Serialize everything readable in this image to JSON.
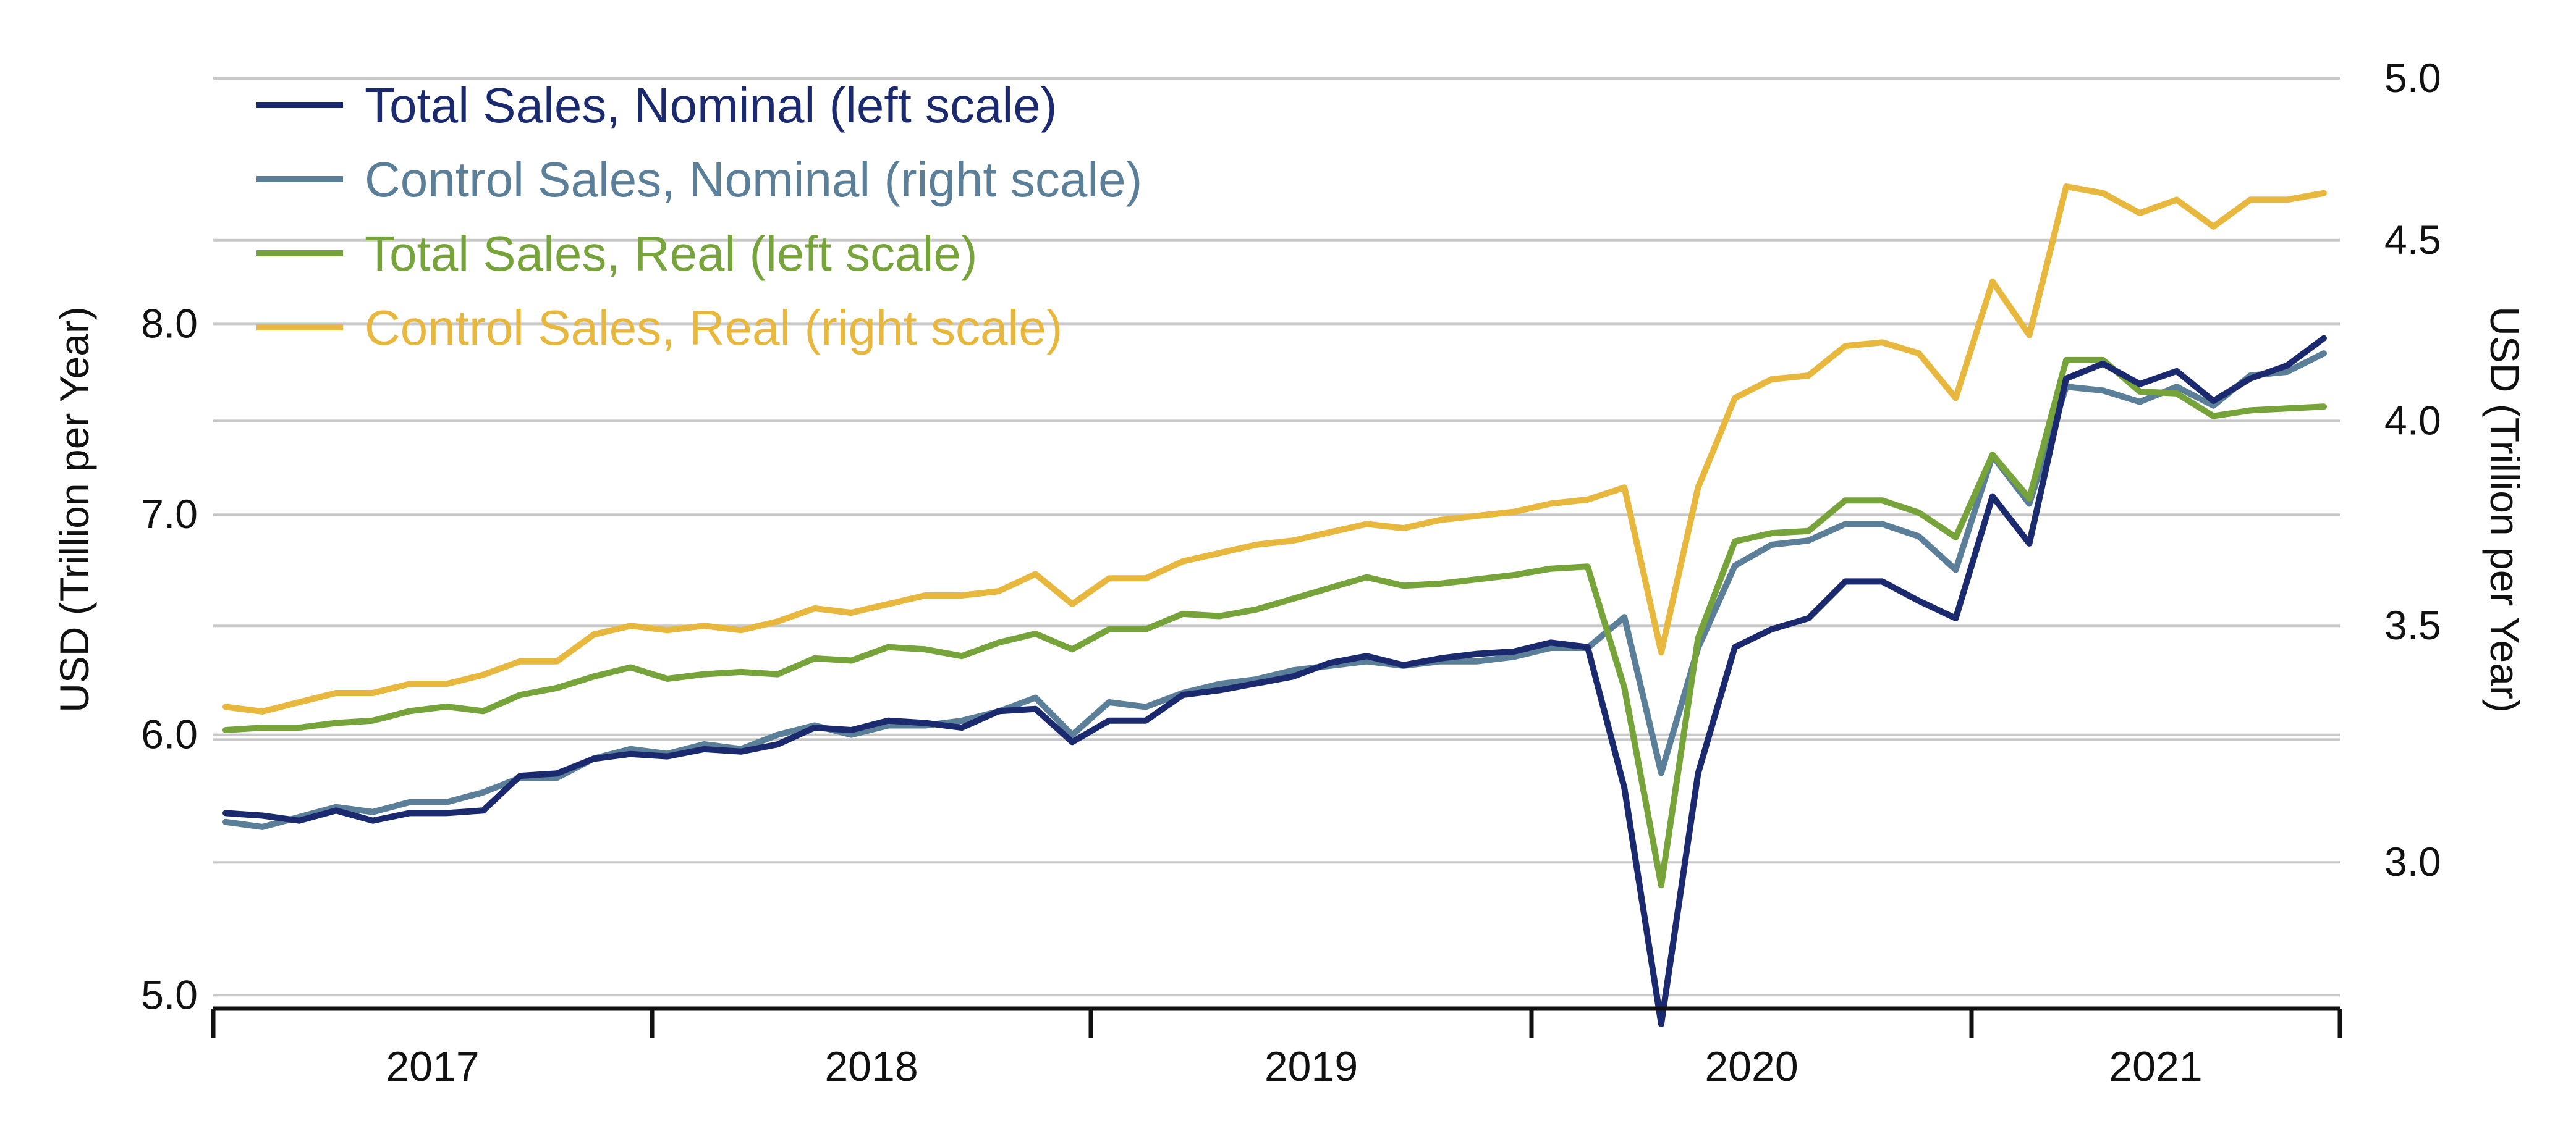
{
  "chart_data": {
    "type": "line",
    "title": "",
    "xlabel": "",
    "ylabel_left": "USD (Trillion per Year)",
    "ylabel_right": "USD (Trillion per Year)",
    "y_scale": "log",
    "ylim_left": [
      4.9,
      9.5
    ],
    "ylim_right": [
      2.7,
      5.0
    ],
    "left_ticks": [
      "5.0",
      "6.0",
      "7.0",
      "8.0"
    ],
    "right_ticks": [
      "3.0",
      "3.5",
      "4.0",
      "4.5",
      "5.0"
    ],
    "x_labels": [
      "2017",
      "2018",
      "2019",
      "2020",
      "2021"
    ],
    "legend_position": "top-left",
    "series": [
      {
        "name": "Total Sales, Nominal (left scale)",
        "axis": "left",
        "color": "#1b2a6e",
        "values": [
          5.68,
          5.67,
          5.65,
          5.69,
          5.65,
          5.68,
          5.68,
          5.69,
          5.83,
          5.84,
          5.9,
          5.92,
          5.91,
          5.94,
          5.93,
          5.96,
          6.03,
          6.02,
          6.06,
          6.05,
          6.03,
          6.1,
          6.11,
          5.97,
          6.06,
          6.06,
          6.17,
          6.19,
          6.22,
          6.25,
          6.31,
          6.34,
          6.3,
          6.33,
          6.35,
          6.36,
          6.4,
          6.38,
          5.78,
          4.9,
          5.84,
          6.38,
          6.46,
          6.51,
          6.68,
          6.68,
          6.59,
          6.51,
          7.09,
          6.86,
          7.7,
          7.78,
          7.67,
          7.74,
          7.58,
          7.7,
          7.77,
          7.92
        ]
      },
      {
        "name": "Control Sales, Nominal (right scale)",
        "axis": "right",
        "color": "#5b7f98",
        "values": [
          3.08,
          3.07,
          3.09,
          3.11,
          3.1,
          3.12,
          3.12,
          3.14,
          3.17,
          3.17,
          3.21,
          3.23,
          3.22,
          3.24,
          3.23,
          3.26,
          3.28,
          3.26,
          3.28,
          3.28,
          3.29,
          3.31,
          3.34,
          3.26,
          3.33,
          3.32,
          3.35,
          3.37,
          3.38,
          3.4,
          3.41,
          3.42,
          3.41,
          3.42,
          3.42,
          3.43,
          3.45,
          3.45,
          3.52,
          3.18,
          3.45,
          3.64,
          3.69,
          3.7,
          3.74,
          3.74,
          3.71,
          3.63,
          3.91,
          3.79,
          4.09,
          4.08,
          4.05,
          4.09,
          4.04,
          4.12,
          4.13,
          4.18
        ]
      },
      {
        "name": "Total Sales, Real (left scale)",
        "axis": "left",
        "color": "#77a43a",
        "values": [
          6.02,
          6.03,
          6.03,
          6.05,
          6.06,
          6.1,
          6.12,
          6.1,
          6.17,
          6.2,
          6.25,
          6.29,
          6.24,
          6.26,
          6.27,
          6.26,
          6.33,
          6.32,
          6.38,
          6.37,
          6.34,
          6.4,
          6.44,
          6.37,
          6.46,
          6.46,
          6.53,
          6.52,
          6.55,
          6.6,
          6.65,
          6.7,
          6.66,
          6.67,
          6.69,
          6.71,
          6.74,
          6.75,
          6.2,
          5.4,
          6.42,
          6.87,
          6.91,
          6.92,
          7.07,
          7.07,
          7.01,
          6.89,
          7.3,
          7.08,
          7.8,
          7.8,
          7.63,
          7.62,
          7.5,
          7.53,
          7.54,
          7.55
        ]
      },
      {
        "name": "Control Sales, Real (right scale)",
        "axis": "right",
        "color": "#e8b83e",
        "values": [
          3.32,
          3.31,
          3.33,
          3.35,
          3.35,
          3.37,
          3.37,
          3.39,
          3.42,
          3.42,
          3.48,
          3.5,
          3.49,
          3.5,
          3.49,
          3.51,
          3.54,
          3.53,
          3.55,
          3.57,
          3.57,
          3.58,
          3.62,
          3.55,
          3.61,
          3.61,
          3.65,
          3.67,
          3.69,
          3.7,
          3.72,
          3.74,
          3.73,
          3.75,
          3.76,
          3.77,
          3.79,
          3.8,
          3.83,
          3.44,
          3.83,
          4.06,
          4.11,
          4.12,
          4.2,
          4.21,
          4.18,
          4.06,
          4.38,
          4.23,
          4.66,
          4.64,
          4.58,
          4.62,
          4.54,
          4.62,
          4.62,
          4.64
        ]
      }
    ]
  }
}
